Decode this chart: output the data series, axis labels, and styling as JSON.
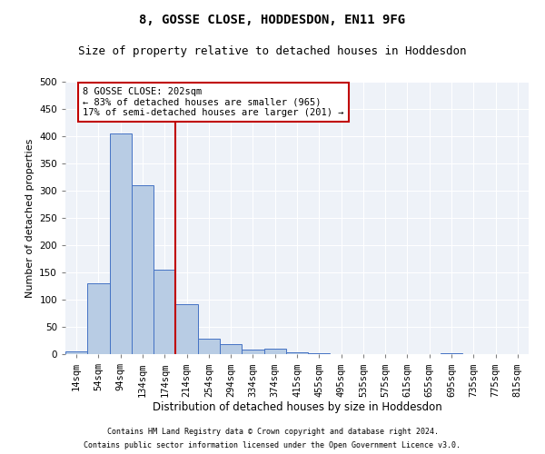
{
  "title": "8, GOSSE CLOSE, HODDESDON, EN11 9FG",
  "subtitle": "Size of property relative to detached houses in Hoddesdon",
  "xlabel": "Distribution of detached houses by size in Hoddesdon",
  "ylabel": "Number of detached properties",
  "footnote1": "Contains HM Land Registry data © Crown copyright and database right 2024.",
  "footnote2": "Contains public sector information licensed under the Open Government Licence v3.0.",
  "categories": [
    "14sqm",
    "54sqm",
    "94sqm",
    "134sqm",
    "174sqm",
    "214sqm",
    "254sqm",
    "294sqm",
    "334sqm",
    "374sqm",
    "415sqm",
    "455sqm",
    "495sqm",
    "535sqm",
    "575sqm",
    "615sqm",
    "655sqm",
    "695sqm",
    "735sqm",
    "775sqm",
    "815sqm"
  ],
  "values": [
    5,
    130,
    405,
    310,
    155,
    92,
    28,
    18,
    9,
    10,
    4,
    1,
    0,
    0,
    0,
    0,
    0,
    1,
    0,
    0,
    0
  ],
  "bar_color": "#b8cce4",
  "bar_edge_color": "#4472c4",
  "vline_x_index": 5,
  "vline_color": "#c00000",
  "annotation_text": "8 GOSSE CLOSE: 202sqm\n← 83% of detached houses are smaller (965)\n17% of semi-detached houses are larger (201) →",
  "annotation_box_color": "#c00000",
  "annotation_fontsize": 7.5,
  "title_fontsize": 10,
  "subtitle_fontsize": 9,
  "xlabel_fontsize": 8.5,
  "ylabel_fontsize": 8,
  "tick_fontsize": 7.5,
  "ylim": [
    0,
    500
  ],
  "yticks": [
    0,
    50,
    100,
    150,
    200,
    250,
    300,
    350,
    400,
    450,
    500
  ],
  "background_color": "#eef2f8"
}
